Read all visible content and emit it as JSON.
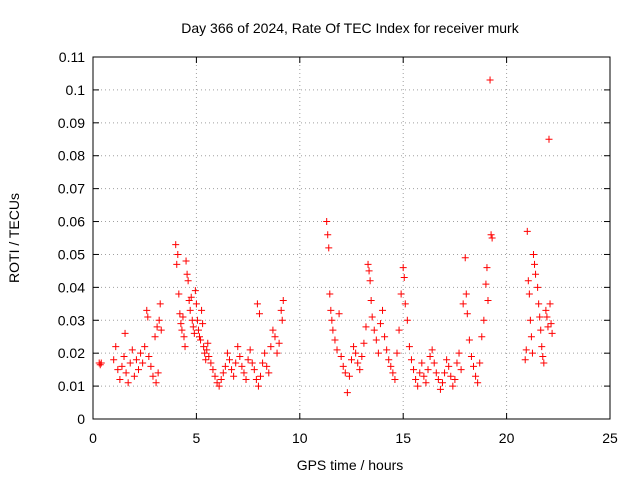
{
  "chart_data": {
    "type": "scatter",
    "title": "Day 366 of 2024, Rate Of TEC Index for receiver murk",
    "xlabel": "GPS time / hours",
    "ylabel": "ROTI / TECUs",
    "xlim": [
      0,
      25
    ],
    "ylim": [
      0,
      0.11
    ],
    "x_ticks": [
      0,
      5,
      10,
      15,
      20,
      25
    ],
    "x_tick_labels": [
      "0",
      "5",
      "10",
      "15",
      "20",
      "25"
    ],
    "y_ticks": [
      0,
      0.01,
      0.02,
      0.03,
      0.04,
      0.05,
      0.06,
      0.07,
      0.08,
      0.09,
      0.1,
      0.11
    ],
    "y_tick_labels": [
      "0",
      "0.01",
      "0.02",
      "0.03",
      "0.04",
      "0.05",
      "0.06",
      "0.07",
      "0.08",
      "0.09",
      "0.1",
      "0.11"
    ],
    "grid": true,
    "marker": "+",
    "color": "#ff0000",
    "series": [
      {
        "points": [
          [
            0.3,
            0.017
          ],
          [
            0.35,
            0.0165
          ],
          [
            0.4,
            0.017
          ],
          [
            1.0,
            0.018
          ],
          [
            1.1,
            0.022
          ],
          [
            1.2,
            0.015
          ],
          [
            1.3,
            0.012
          ],
          [
            1.4,
            0.016
          ],
          [
            1.5,
            0.019
          ],
          [
            1.55,
            0.026
          ],
          [
            1.6,
            0.014
          ],
          [
            1.7,
            0.011
          ],
          [
            1.8,
            0.017
          ],
          [
            1.9,
            0.021
          ],
          [
            2.0,
            0.013
          ],
          [
            2.1,
            0.018
          ],
          [
            2.2,
            0.015
          ],
          [
            2.3,
            0.02
          ],
          [
            2.4,
            0.017
          ],
          [
            2.5,
            0.022
          ],
          [
            2.6,
            0.033
          ],
          [
            2.65,
            0.031
          ],
          [
            2.7,
            0.019
          ],
          [
            2.8,
            0.016
          ],
          [
            2.9,
            0.013
          ],
          [
            3.0,
            0.025
          ],
          [
            3.1,
            0.028
          ],
          [
            3.2,
            0.03
          ],
          [
            3.25,
            0.035
          ],
          [
            3.3,
            0.027
          ],
          [
            3.05,
            0.011
          ],
          [
            3.15,
            0.014
          ],
          [
            4.0,
            0.053
          ],
          [
            4.05,
            0.047
          ],
          [
            4.1,
            0.05
          ],
          [
            4.15,
            0.038
          ],
          [
            4.2,
            0.032
          ],
          [
            4.25,
            0.029
          ],
          [
            4.3,
            0.027
          ],
          [
            4.35,
            0.031
          ],
          [
            4.4,
            0.025
          ],
          [
            4.45,
            0.022
          ],
          [
            4.5,
            0.048
          ],
          [
            4.55,
            0.044
          ],
          [
            4.6,
            0.042
          ],
          [
            4.65,
            0.036
          ],
          [
            4.7,
            0.033
          ],
          [
            4.75,
            0.037
          ],
          [
            4.8,
            0.03
          ],
          [
            4.85,
            0.028
          ],
          [
            4.9,
            0.026
          ],
          [
            4.95,
            0.039
          ],
          [
            5.0,
            0.035
          ],
          [
            5.05,
            0.03
          ],
          [
            5.1,
            0.027
          ],
          [
            5.15,
            0.025
          ],
          [
            5.2,
            0.024
          ],
          [
            5.25,
            0.033
          ],
          [
            5.3,
            0.029
          ],
          [
            5.35,
            0.022
          ],
          [
            5.4,
            0.02
          ],
          [
            5.45,
            0.018
          ],
          [
            5.5,
            0.021
          ],
          [
            5.55,
            0.023
          ],
          [
            5.6,
            0.019
          ],
          [
            5.7,
            0.017
          ],
          [
            5.8,
            0.015
          ],
          [
            5.9,
            0.013
          ],
          [
            6.0,
            0.011
          ],
          [
            6.1,
            0.01
          ],
          [
            6.2,
            0.012
          ],
          [
            6.3,
            0.014
          ],
          [
            6.4,
            0.016
          ],
          [
            6.5,
            0.02
          ],
          [
            6.6,
            0.018
          ],
          [
            6.7,
            0.015
          ],
          [
            6.8,
            0.013
          ],
          [
            6.9,
            0.017
          ],
          [
            7.0,
            0.022
          ],
          [
            7.1,
            0.019
          ],
          [
            7.2,
            0.016
          ],
          [
            7.3,
            0.014
          ],
          [
            7.4,
            0.012
          ],
          [
            7.5,
            0.018
          ],
          [
            7.6,
            0.021
          ],
          [
            7.7,
            0.017
          ],
          [
            7.8,
            0.015
          ],
          [
            7.9,
            0.012
          ],
          [
            8.0,
            0.01
          ],
          [
            8.1,
            0.013
          ],
          [
            8.2,
            0.017
          ],
          [
            7.95,
            0.035
          ],
          [
            8.05,
            0.032
          ],
          [
            8.3,
            0.02
          ],
          [
            8.4,
            0.016
          ],
          [
            8.5,
            0.014
          ],
          [
            8.6,
            0.022
          ],
          [
            8.7,
            0.027
          ],
          [
            8.8,
            0.025
          ],
          [
            8.9,
            0.02
          ],
          [
            9.0,
            0.023
          ],
          [
            9.1,
            0.033
          ],
          [
            9.2,
            0.036
          ],
          [
            9.15,
            0.03
          ],
          [
            11.3,
            0.06
          ],
          [
            11.35,
            0.056
          ],
          [
            11.4,
            0.052
          ],
          [
            11.45,
            0.038
          ],
          [
            11.5,
            0.033
          ],
          [
            11.55,
            0.03
          ],
          [
            11.6,
            0.027
          ],
          [
            11.7,
            0.024
          ],
          [
            11.8,
            0.021
          ],
          [
            11.9,
            0.032
          ],
          [
            12.0,
            0.019
          ],
          [
            12.1,
            0.016
          ],
          [
            12.2,
            0.014
          ],
          [
            12.3,
            0.008
          ],
          [
            12.4,
            0.013
          ],
          [
            12.5,
            0.018
          ],
          [
            12.6,
            0.022
          ],
          [
            12.7,
            0.02
          ],
          [
            12.8,
            0.017
          ],
          [
            12.9,
            0.015
          ],
          [
            13.0,
            0.019
          ],
          [
            13.1,
            0.023
          ],
          [
            13.2,
            0.028
          ],
          [
            13.3,
            0.047
          ],
          [
            13.35,
            0.045
          ],
          [
            13.4,
            0.042
          ],
          [
            13.45,
            0.036
          ],
          [
            13.5,
            0.031
          ],
          [
            13.6,
            0.027
          ],
          [
            13.7,
            0.024
          ],
          [
            13.8,
            0.02
          ],
          [
            13.9,
            0.029
          ],
          [
            14.0,
            0.033
          ],
          [
            14.1,
            0.025
          ],
          [
            14.2,
            0.021
          ],
          [
            14.3,
            0.018
          ],
          [
            14.4,
            0.016
          ],
          [
            14.5,
            0.014
          ],
          [
            14.6,
            0.012
          ],
          [
            14.7,
            0.02
          ],
          [
            14.8,
            0.027
          ],
          [
            14.9,
            0.038
          ],
          [
            15.0,
            0.046
          ],
          [
            15.05,
            0.043
          ],
          [
            15.1,
            0.035
          ],
          [
            15.2,
            0.03
          ],
          [
            15.3,
            0.022
          ],
          [
            15.4,
            0.018
          ],
          [
            15.5,
            0.015
          ],
          [
            15.6,
            0.012
          ],
          [
            15.7,
            0.01
          ],
          [
            15.8,
            0.014
          ],
          [
            15.9,
            0.017
          ],
          [
            16.0,
            0.013
          ],
          [
            16.1,
            0.011
          ],
          [
            16.2,
            0.015
          ],
          [
            16.3,
            0.019
          ],
          [
            16.4,
            0.021
          ],
          [
            16.5,
            0.017
          ],
          [
            16.6,
            0.014
          ],
          [
            16.7,
            0.012
          ],
          [
            16.8,
            0.009
          ],
          [
            16.9,
            0.011
          ],
          [
            17.0,
            0.014
          ],
          [
            17.1,
            0.018
          ],
          [
            17.2,
            0.016
          ],
          [
            17.3,
            0.013
          ],
          [
            17.4,
            0.01
          ],
          [
            17.5,
            0.012
          ],
          [
            17.6,
            0.017
          ],
          [
            17.7,
            0.02
          ],
          [
            17.8,
            0.015
          ],
          [
            17.9,
            0.035
          ],
          [
            18.0,
            0.049
          ],
          [
            18.05,
            0.038
          ],
          [
            18.1,
            0.032
          ],
          [
            18.2,
            0.024
          ],
          [
            18.3,
            0.019
          ],
          [
            18.4,
            0.016
          ],
          [
            18.5,
            0.013
          ],
          [
            18.6,
            0.011
          ],
          [
            18.7,
            0.017
          ],
          [
            18.8,
            0.025
          ],
          [
            18.9,
            0.03
          ],
          [
            19.0,
            0.041
          ],
          [
            19.05,
            0.046
          ],
          [
            19.1,
            0.036
          ],
          [
            19.2,
            0.103
          ],
          [
            19.25,
            0.056
          ],
          [
            19.3,
            0.055
          ],
          [
            21.0,
            0.057
          ],
          [
            21.05,
            0.042
          ],
          [
            21.1,
            0.038
          ],
          [
            21.15,
            0.03
          ],
          [
            21.2,
            0.025
          ],
          [
            21.25,
            0.02
          ],
          [
            21.3,
            0.05
          ],
          [
            21.35,
            0.047
          ],
          [
            21.4,
            0.044
          ],
          [
            21.5,
            0.04
          ],
          [
            21.55,
            0.035
          ],
          [
            21.6,
            0.031
          ],
          [
            21.65,
            0.027
          ],
          [
            21.7,
            0.022
          ],
          [
            21.75,
            0.019
          ],
          [
            21.8,
            0.017
          ],
          [
            21.9,
            0.033
          ],
          [
            21.95,
            0.031
          ],
          [
            22.0,
            0.028
          ],
          [
            22.05,
            0.085
          ],
          [
            22.1,
            0.035
          ],
          [
            22.15,
            0.029
          ],
          [
            22.2,
            0.026
          ],
          [
            20.9,
            0.018
          ],
          [
            20.95,
            0.021
          ]
        ]
      }
    ]
  }
}
